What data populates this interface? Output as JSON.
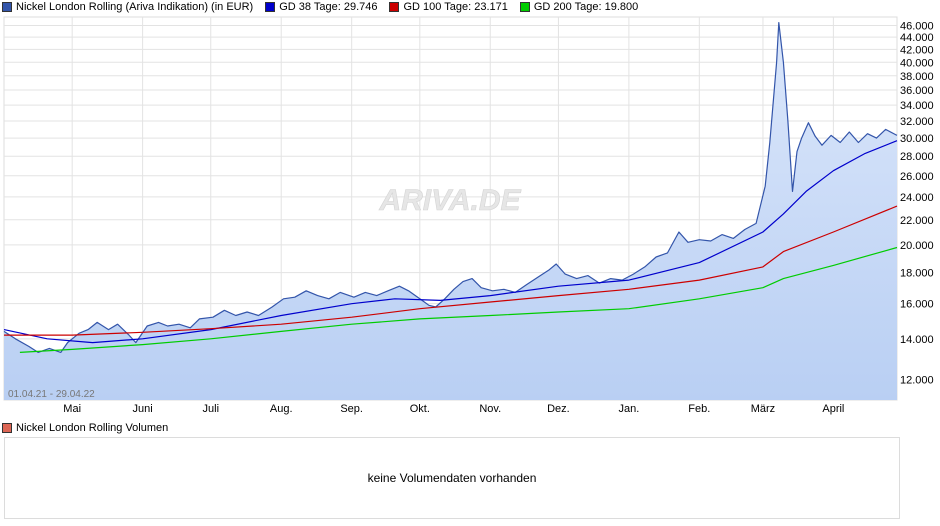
{
  "legend": [
    {
      "label": "Nickel London Rolling (Ariva Indikation) (in EUR)",
      "color": "#3355aa"
    },
    {
      "label": "GD 38 Tage: 29.746",
      "color": "#0000cc"
    },
    {
      "label": "GD 100 Tage: 23.171",
      "color": "#cc0000"
    },
    {
      "label": "GD 200 Tage: 19.800",
      "color": "#00cc00"
    }
  ],
  "watermark": "ARIVA.DE",
  "range_label": "01.04.21 - 29.04.22",
  "volume": {
    "legend_label": "Nickel London Rolling Volumen",
    "legend_color": "#dd6655",
    "empty_message": "keine Volumendaten vorhanden"
  },
  "chart_data": {
    "type": "line",
    "x_unit": "date",
    "x_range": [
      "2021-04-01",
      "2022-04-29"
    ],
    "ylim": [
      11100,
      47500
    ],
    "y_scale": "log",
    "y_ticks": [
      12000,
      14000,
      16000,
      18000,
      20000,
      22000,
      24000,
      26000,
      28000,
      30000,
      32000,
      34000,
      36000,
      38000,
      40000,
      42000,
      44000,
      46000
    ],
    "y_tick_labels": [
      "12.000",
      "14.000",
      "16.000",
      "18.000",
      "20.000",
      "22.000",
      "24.000",
      "26.000",
      "28.000",
      "30.000",
      "32.000",
      "34.000",
      "36.000",
      "38.000",
      "40.000",
      "42.000",
      "44.000",
      "46.000"
    ],
    "x_ticks": [
      {
        "label": "Mai",
        "date": "2021-05-01"
      },
      {
        "label": "Juni",
        "date": "2021-06-01"
      },
      {
        "label": "Juli",
        "date": "2021-07-01"
      },
      {
        "label": "Aug.",
        "date": "2021-08-01"
      },
      {
        "label": "Sep.",
        "date": "2021-09-01"
      },
      {
        "label": "Okt.",
        "date": "2021-10-01"
      },
      {
        "label": "Nov.",
        "date": "2021-11-01"
      },
      {
        "label": "Dez.",
        "date": "2021-12-01"
      },
      {
        "label": "Jan.",
        "date": "2022-01-01"
      },
      {
        "label": "Feb.",
        "date": "2022-02-01"
      },
      {
        "label": "März",
        "date": "2022-03-01"
      },
      {
        "label": "April",
        "date": "2022-04-01"
      }
    ],
    "grid": true,
    "series": [
      {
        "name": "Nickel London Rolling (Ariva Indikation) (in EUR)",
        "color": "#3355aa",
        "fill": true,
        "points": [
          [
            "2021-04-01",
            14400
          ],
          [
            "2021-04-06",
            14000
          ],
          [
            "2021-04-12",
            13600
          ],
          [
            "2021-04-16",
            13300
          ],
          [
            "2021-04-21",
            13500
          ],
          [
            "2021-04-26",
            13300
          ],
          [
            "2021-04-29",
            13800
          ],
          [
            "2021-05-04",
            14300
          ],
          [
            "2021-05-08",
            14500
          ],
          [
            "2021-05-12",
            14900
          ],
          [
            "2021-05-17",
            14500
          ],
          [
            "2021-05-21",
            14800
          ],
          [
            "2021-05-26",
            14200
          ],
          [
            "2021-05-29",
            13800
          ],
          [
            "2021-06-03",
            14700
          ],
          [
            "2021-06-08",
            14900
          ],
          [
            "2021-06-12",
            14700
          ],
          [
            "2021-06-17",
            14800
          ],
          [
            "2021-06-22",
            14600
          ],
          [
            "2021-06-26",
            15100
          ],
          [
            "2021-07-02",
            15200
          ],
          [
            "2021-07-07",
            15600
          ],
          [
            "2021-07-12",
            15300
          ],
          [
            "2021-07-17",
            15500
          ],
          [
            "2021-07-22",
            15300
          ],
          [
            "2021-07-28",
            15800
          ],
          [
            "2021-08-02",
            16300
          ],
          [
            "2021-08-07",
            16400
          ],
          [
            "2021-08-12",
            16800
          ],
          [
            "2021-08-17",
            16500
          ],
          [
            "2021-08-22",
            16300
          ],
          [
            "2021-08-27",
            16700
          ],
          [
            "2021-09-02",
            16400
          ],
          [
            "2021-09-07",
            16700
          ],
          [
            "2021-09-12",
            16500
          ],
          [
            "2021-09-17",
            16800
          ],
          [
            "2021-09-22",
            17100
          ],
          [
            "2021-09-26",
            16800
          ],
          [
            "2021-10-02",
            16200
          ],
          [
            "2021-10-05",
            15900
          ],
          [
            "2021-10-08",
            15800
          ],
          [
            "2021-10-12",
            16300
          ],
          [
            "2021-10-16",
            16900
          ],
          [
            "2021-10-20",
            17400
          ],
          [
            "2021-10-24",
            17600
          ],
          [
            "2021-10-28",
            17000
          ],
          [
            "2021-11-02",
            16800
          ],
          [
            "2021-11-07",
            16900
          ],
          [
            "2021-11-12",
            16700
          ],
          [
            "2021-11-17",
            17200
          ],
          [
            "2021-11-22",
            17700
          ],
          [
            "2021-11-27",
            18200
          ],
          [
            "2021-11-30",
            18600
          ],
          [
            "2021-12-04",
            17900
          ],
          [
            "2021-12-09",
            17600
          ],
          [
            "2021-12-14",
            17800
          ],
          [
            "2021-12-19",
            17300
          ],
          [
            "2021-12-24",
            17600
          ],
          [
            "2021-12-29",
            17500
          ],
          [
            "2022-01-03",
            17900
          ],
          [
            "2022-01-08",
            18400
          ],
          [
            "2022-01-13",
            19100
          ],
          [
            "2022-01-18",
            19400
          ],
          [
            "2022-01-23",
            21000
          ],
          [
            "2022-01-27",
            20200
          ],
          [
            "2022-02-01",
            20400
          ],
          [
            "2022-02-06",
            20300
          ],
          [
            "2022-02-11",
            20800
          ],
          [
            "2022-02-16",
            20500
          ],
          [
            "2022-02-21",
            21200
          ],
          [
            "2022-02-26",
            21700
          ],
          [
            "2022-03-02",
            25000
          ],
          [
            "2022-03-04",
            29500
          ],
          [
            "2022-03-07",
            40000
          ],
          [
            "2022-03-08",
            46500
          ],
          [
            "2022-03-10",
            40000
          ],
          [
            "2022-03-12",
            32000
          ],
          [
            "2022-03-14",
            24500
          ],
          [
            "2022-03-16",
            28500
          ],
          [
            "2022-03-18",
            30000
          ],
          [
            "2022-03-21",
            31800
          ],
          [
            "2022-03-24",
            30200
          ],
          [
            "2022-03-27",
            29200
          ],
          [
            "2022-03-31",
            30300
          ],
          [
            "2022-04-04",
            29500
          ],
          [
            "2022-04-08",
            30700
          ],
          [
            "2022-04-12",
            29500
          ],
          [
            "2022-04-16",
            30500
          ],
          [
            "2022-04-20",
            30000
          ],
          [
            "2022-04-24",
            31000
          ],
          [
            "2022-04-29",
            30300
          ]
        ]
      },
      {
        "name": "GD 38 Tage: 29.746",
        "color": "#0000cc",
        "fill": false,
        "points": [
          [
            "2021-04-01",
            14500
          ],
          [
            "2021-04-20",
            14000
          ],
          [
            "2021-05-10",
            13800
          ],
          [
            "2021-06-01",
            14000
          ],
          [
            "2021-07-01",
            14500
          ],
          [
            "2021-08-01",
            15300
          ],
          [
            "2021-09-01",
            16000
          ],
          [
            "2021-09-20",
            16300
          ],
          [
            "2021-10-10",
            16200
          ],
          [
            "2021-11-01",
            16500
          ],
          [
            "2021-12-01",
            17100
          ],
          [
            "2022-01-01",
            17500
          ],
          [
            "2022-02-01",
            18700
          ],
          [
            "2022-03-01",
            21000
          ],
          [
            "2022-03-10",
            22500
          ],
          [
            "2022-03-20",
            24500
          ],
          [
            "2022-04-01",
            26500
          ],
          [
            "2022-04-15",
            28300
          ],
          [
            "2022-04-29",
            29700
          ]
        ]
      },
      {
        "name": "GD 100 Tage: 23.171",
        "color": "#cc0000",
        "fill": false,
        "points": [
          [
            "2021-04-01",
            14200
          ],
          [
            "2021-05-01",
            14200
          ],
          [
            "2021-06-01",
            14350
          ],
          [
            "2021-07-01",
            14550
          ],
          [
            "2021-08-01",
            14800
          ],
          [
            "2021-09-01",
            15200
          ],
          [
            "2021-10-01",
            15700
          ],
          [
            "2021-11-01",
            16100
          ],
          [
            "2021-12-01",
            16500
          ],
          [
            "2022-01-01",
            16900
          ],
          [
            "2022-02-01",
            17500
          ],
          [
            "2022-03-01",
            18400
          ],
          [
            "2022-03-10",
            19500
          ],
          [
            "2022-04-01",
            21000
          ],
          [
            "2022-04-29",
            23171
          ]
        ]
      },
      {
        "name": "GD 200 Tage: 19.800",
        "color": "#00cc00",
        "fill": false,
        "points": [
          [
            "2021-04-08",
            13300
          ],
          [
            "2021-05-01",
            13450
          ],
          [
            "2021-06-01",
            13700
          ],
          [
            "2021-07-01",
            14000
          ],
          [
            "2021-08-01",
            14400
          ],
          [
            "2021-09-01",
            14800
          ],
          [
            "2021-10-01",
            15100
          ],
          [
            "2021-11-01",
            15300
          ],
          [
            "2021-12-01",
            15500
          ],
          [
            "2022-01-01",
            15700
          ],
          [
            "2022-02-01",
            16300
          ],
          [
            "2022-03-01",
            17000
          ],
          [
            "2022-03-10",
            17600
          ],
          [
            "2022-04-01",
            18500
          ],
          [
            "2022-04-29",
            19800
          ]
        ]
      }
    ]
  }
}
